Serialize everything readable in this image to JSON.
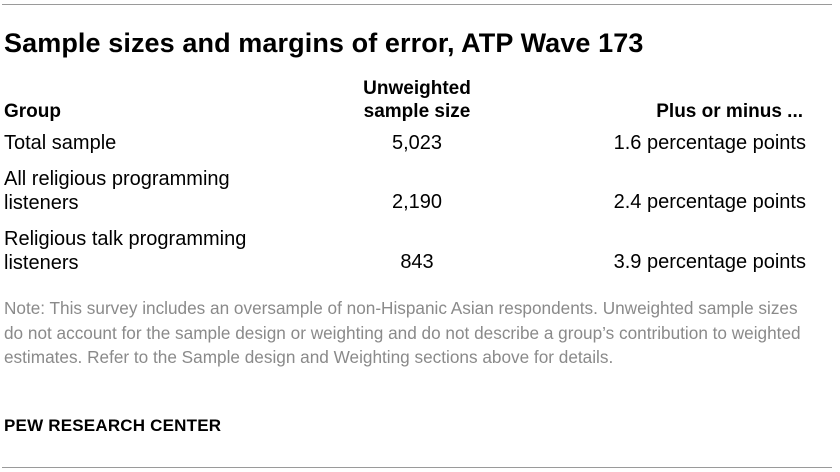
{
  "title": "Sample sizes and margins of error, ATP Wave 173",
  "table": {
    "headers": {
      "group": "Group",
      "sample_line1": "Unweighted",
      "sample_line2": "sample size",
      "moe": "Plus or minus ..."
    },
    "rows": [
      {
        "group_line1": "Total sample",
        "group_line2": "",
        "sample_size": "5,023",
        "margin": "1.6 percentage points"
      },
      {
        "group_line1": "All religious programming",
        "group_line2": "listeners",
        "sample_size": "2,190",
        "margin": "2.4 percentage points"
      },
      {
        "group_line1": "Religious talk programming",
        "group_line2": "listeners",
        "sample_size": "843",
        "margin": "3.9 percentage points"
      }
    ]
  },
  "note": "Note: This survey includes an oversample of non-Hispanic Asian respondents. Unweighted sample sizes do not account for the sample design or weighting and do not describe a group’s contribution to weighted estimates. Refer to the Sample design and Weighting sections above for details.",
  "source": "PEW RESEARCH CENTER",
  "colors": {
    "text": "#000000",
    "note_text": "#8a8a8a",
    "rule": "#9a9a9a"
  }
}
